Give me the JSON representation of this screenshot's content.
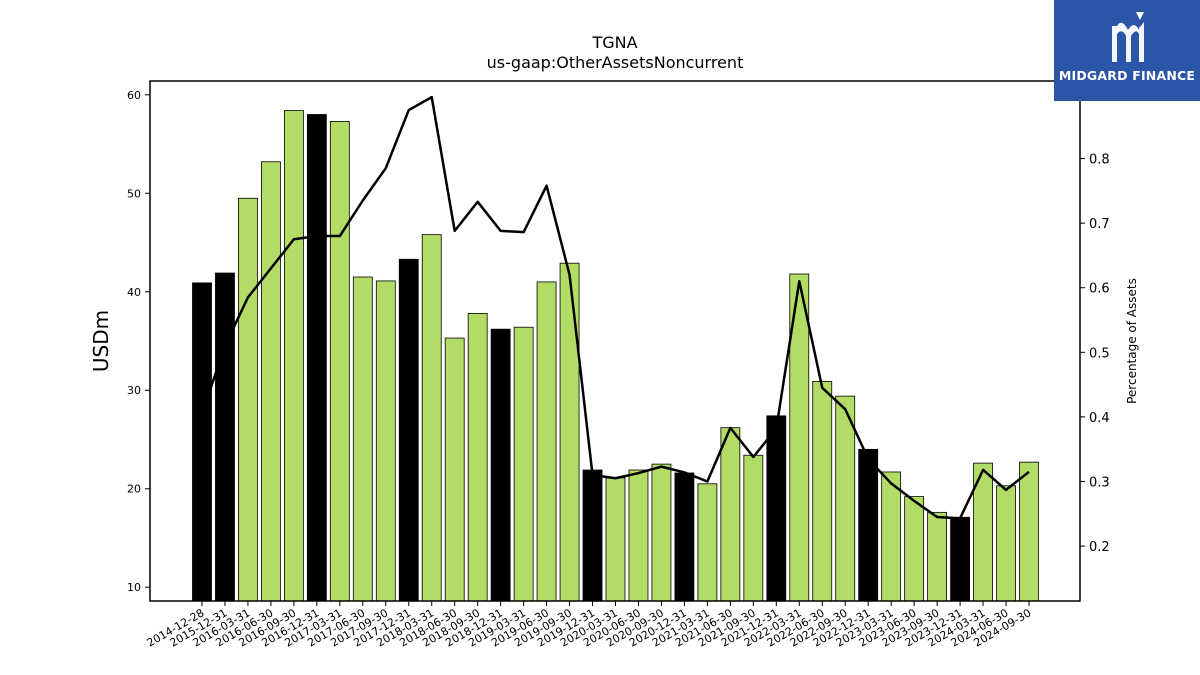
{
  "chart_data": {
    "type": "bar",
    "title": "TGNA",
    "subtitle": "us-gaap:OtherAssetsNoncurrent",
    "ylabel": "USDm",
    "y2label": "Percentage of Assets",
    "ylim": [
      8.6,
      61.4
    ],
    "y2lim": [
      0.115,
      0.92
    ],
    "yticks": [
      10,
      20,
      30,
      40,
      50,
      60
    ],
    "y2ticks": [
      0.2,
      0.3,
      0.4,
      0.5,
      0.6,
      0.7,
      0.8,
      0.9
    ],
    "grid": false,
    "colors": {
      "annual": "#000000",
      "quarterly": "#b3dc67",
      "line": "#000000"
    },
    "categories": [
      "2014-12-28",
      "2015-12-31",
      "2016-03-31",
      "2016-06-30",
      "2016-09-30",
      "2016-12-31",
      "2017-03-31",
      "2017-06-30",
      "2017-09-30",
      "2017-12-31",
      "2018-03-31",
      "2018-06-30",
      "2018-09-30",
      "2018-12-31",
      "2019-03-31",
      "2019-06-30",
      "2019-09-30",
      "2019-12-31",
      "2020-03-31",
      "2020-06-30",
      "2020-09-30",
      "2020-12-31",
      "2021-03-31",
      "2021-06-30",
      "2021-09-30",
      "2021-12-31",
      "2022-03-31",
      "2022-06-30",
      "2022-09-30",
      "2022-12-31",
      "2023-03-31",
      "2023-06-30",
      "2023-09-30",
      "2023-12-31",
      "2024-03-31",
      "2024-06-30",
      "2024-09-30"
    ],
    "values": [
      40.9,
      41.9,
      49.5,
      53.2,
      58.4,
      58.0,
      57.3,
      41.5,
      41.1,
      43.3,
      45.8,
      35.3,
      37.8,
      36.2,
      36.4,
      41.0,
      42.9,
      21.9,
      21.1,
      21.9,
      22.5,
      21.6,
      20.5,
      26.2,
      23.4,
      27.4,
      41.8,
      30.9,
      29.4,
      24.0,
      21.7,
      19.2,
      17.6,
      17.1,
      22.6,
      20.3,
      22.7
    ],
    "annual": [
      true,
      true,
      false,
      false,
      false,
      true,
      false,
      false,
      false,
      true,
      false,
      false,
      false,
      true,
      false,
      false,
      false,
      true,
      false,
      false,
      false,
      true,
      false,
      false,
      false,
      true,
      false,
      false,
      false,
      true,
      false,
      false,
      false,
      true,
      false,
      false,
      false
    ],
    "pct_of_assets": [
      0.405,
      0.51,
      0.585,
      0.63,
      0.675,
      0.68,
      0.68,
      0.735,
      0.785,
      0.875,
      0.895,
      0.688,
      0.733,
      0.688,
      0.686,
      0.758,
      0.62,
      0.31,
      0.305,
      0.313,
      0.323,
      0.314,
      0.3,
      0.383,
      0.338,
      0.382,
      0.61,
      0.445,
      0.412,
      0.335,
      0.297,
      0.27,
      0.245,
      0.243,
      0.318,
      0.287,
      0.315
    ]
  },
  "logo": {
    "text": "MIDGARD FINANCE"
  }
}
